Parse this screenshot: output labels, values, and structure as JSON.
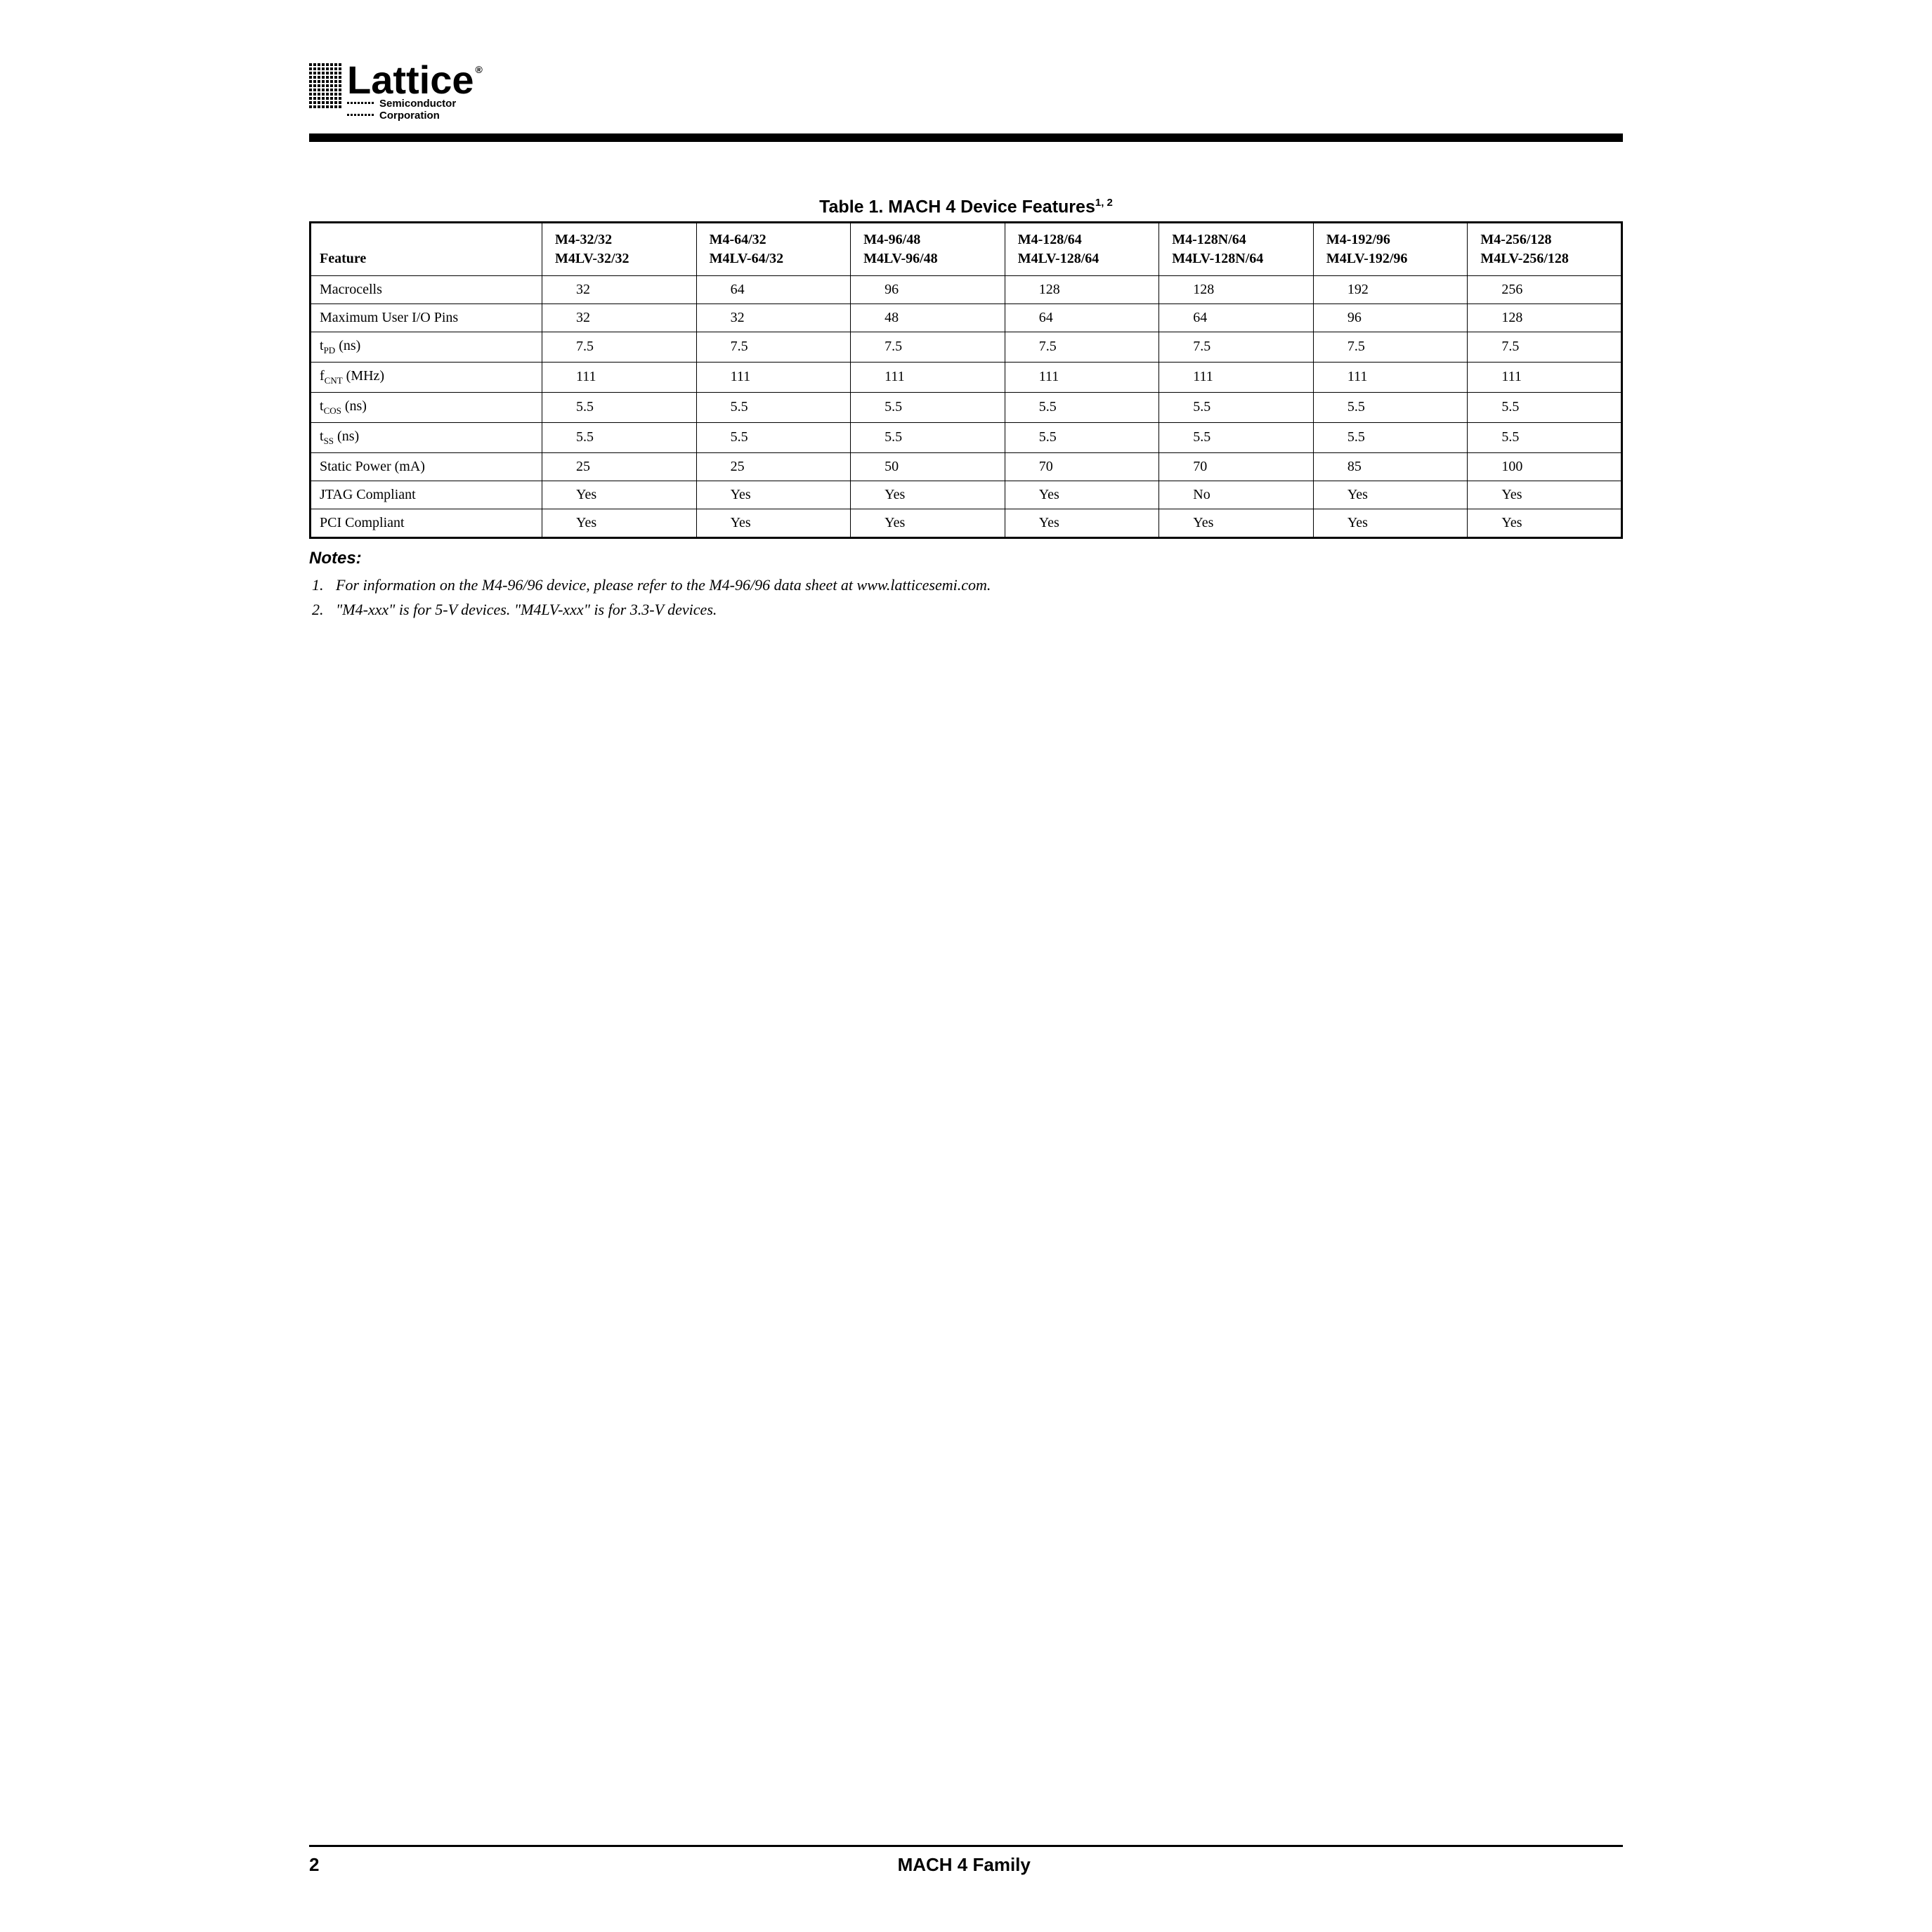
{
  "brand": {
    "name": "Lattice",
    "registered": "®",
    "sub1": "Semiconductor",
    "sub2": "Corporation"
  },
  "table": {
    "title_prefix": "Table 1. MACH 4 Device Features",
    "title_sup": "1, 2",
    "feature_header": "Feature",
    "columns": [
      {
        "line1": "M4-32/32",
        "line2": "M4LV-32/32"
      },
      {
        "line1": "M4-64/32",
        "line2": "M4LV-64/32"
      },
      {
        "line1": "M4-96/48",
        "line2": "M4LV-96/48"
      },
      {
        "line1": "M4-128/64",
        "line2": "M4LV-128/64"
      },
      {
        "line1": "M4-128N/64",
        "line2": "M4LV-128N/64"
      },
      {
        "line1": "M4-192/96",
        "line2": "M4LV-192/96"
      },
      {
        "line1": "M4-256/128",
        "line2": "M4LV-256/128"
      }
    ],
    "rows": [
      {
        "label_html": "Macrocells",
        "values": [
          "32",
          "64",
          "96",
          "128",
          "128",
          "192",
          "256"
        ]
      },
      {
        "label_html": "Maximum User I/O Pins",
        "values": [
          "32",
          "32",
          "48",
          "64",
          "64",
          "96",
          "128"
        ]
      },
      {
        "label_html": "t<span class=\"sub\">PD</span> (ns)",
        "values": [
          "7.5",
          "7.5",
          "7.5",
          "7.5",
          "7.5",
          "7.5",
          "7.5"
        ]
      },
      {
        "label_html": "f<span class=\"sub\">CNT</span> (MHz)",
        "values": [
          "111",
          "111",
          "111",
          "111",
          "111",
          "111",
          "111"
        ]
      },
      {
        "label_html": "t<span class=\"sub\">COS</span> (ns)",
        "values": [
          "5.5",
          "5.5",
          "5.5",
          "5.5",
          "5.5",
          "5.5",
          "5.5"
        ]
      },
      {
        "label_html": "t<span class=\"sub\">SS</span> (ns)",
        "values": [
          "5.5",
          "5.5",
          "5.5",
          "5.5",
          "5.5",
          "5.5",
          "5.5"
        ]
      },
      {
        "label_html": "Static Power (mA)",
        "values": [
          "25",
          "25",
          "50",
          "70",
          "70",
          "85",
          "100"
        ]
      },
      {
        "label_html": "JTAG Compliant",
        "values": [
          "Yes",
          "Yes",
          "Yes",
          "Yes",
          "No",
          "Yes",
          "Yes"
        ]
      },
      {
        "label_html": "PCI Compliant",
        "values": [
          "Yes",
          "Yes",
          "Yes",
          "Yes",
          "Yes",
          "Yes",
          "Yes"
        ]
      }
    ]
  },
  "notes": {
    "heading": "Notes:",
    "items": [
      "For information on the M4-96/96 device, please refer to the M4-96/96 data sheet at www.latticesemi.com.",
      "\"M4-xxx\" is for 5-V devices. \"M4LV-xxx\" is for 3.3-V devices."
    ]
  },
  "footer": {
    "page": "2",
    "title": "MACH 4 Family"
  },
  "colors": {
    "text": "#000000",
    "rule": "#000000",
    "bg": "#ffffff"
  }
}
